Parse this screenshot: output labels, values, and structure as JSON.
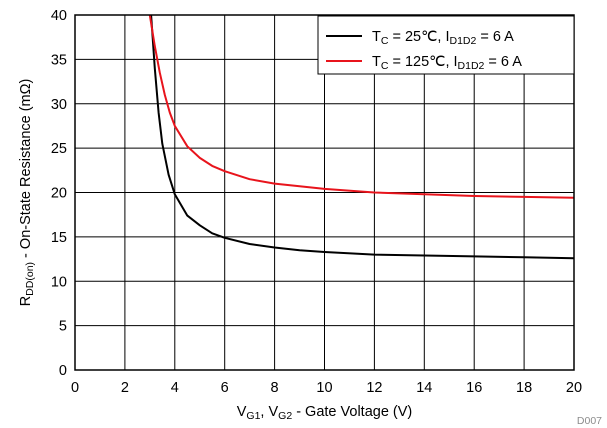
{
  "figure_id": "D007",
  "chart_data": {
    "type": "line",
    "title": "",
    "xlabel": {
      "main": "V",
      "sub1": "G1",
      "mid": ", V",
      "sub2": "G2",
      "tail": " - Gate Voltage (V)"
    },
    "ylabel": {
      "main": "R",
      "sub": "DD(on)",
      "tail": " - On-State Resistance (mΩ)"
    },
    "xlim": [
      0,
      20
    ],
    "ylim": [
      0,
      40
    ],
    "xticks": [
      "0",
      "2",
      "4",
      "6",
      "8",
      "10",
      "12",
      "14",
      "16",
      "18",
      "20"
    ],
    "yticks": [
      "0",
      "5",
      "10",
      "15",
      "20",
      "25",
      "30",
      "35",
      "40"
    ],
    "grid": true,
    "legend_position": "top-right",
    "series": [
      {
        "legend": {
          "t": "T",
          "tsub": "C",
          "mid": " = 25℃, I",
          "isub": "D1D2",
          "tail": " = 6 A"
        },
        "color": "#000000",
        "x": [
          3.05,
          3.2,
          3.35,
          3.5,
          3.75,
          4.0,
          4.5,
          5.0,
          5.5,
          6.0,
          7.0,
          8.0,
          9.0,
          10.0,
          12.0,
          14.0,
          16.0,
          18.0,
          20.0
        ],
        "y": [
          40,
          34,
          29,
          25.5,
          22,
          19.8,
          17.4,
          16.3,
          15.4,
          14.9,
          14.2,
          13.8,
          13.5,
          13.3,
          13.0,
          12.9,
          12.8,
          12.7,
          12.6
        ]
      },
      {
        "legend": {
          "t": "T",
          "tsub": "C",
          "mid": " = 125℃, I",
          "isub": "D1D2",
          "tail": " = 6 A"
        },
        "color": "#e8141c",
        "x": [
          3.0,
          3.2,
          3.4,
          3.6,
          3.8,
          4.0,
          4.5,
          5.0,
          5.5,
          6.0,
          7.0,
          8.0,
          9.0,
          10.0,
          12.0,
          14.0,
          16.0,
          18.0,
          20.0
        ],
        "y": [
          40,
          36.5,
          33.5,
          31,
          29,
          27.5,
          25.2,
          23.9,
          23.0,
          22.4,
          21.5,
          21.0,
          20.7,
          20.4,
          20.0,
          19.8,
          19.6,
          19.5,
          19.4
        ]
      }
    ]
  }
}
